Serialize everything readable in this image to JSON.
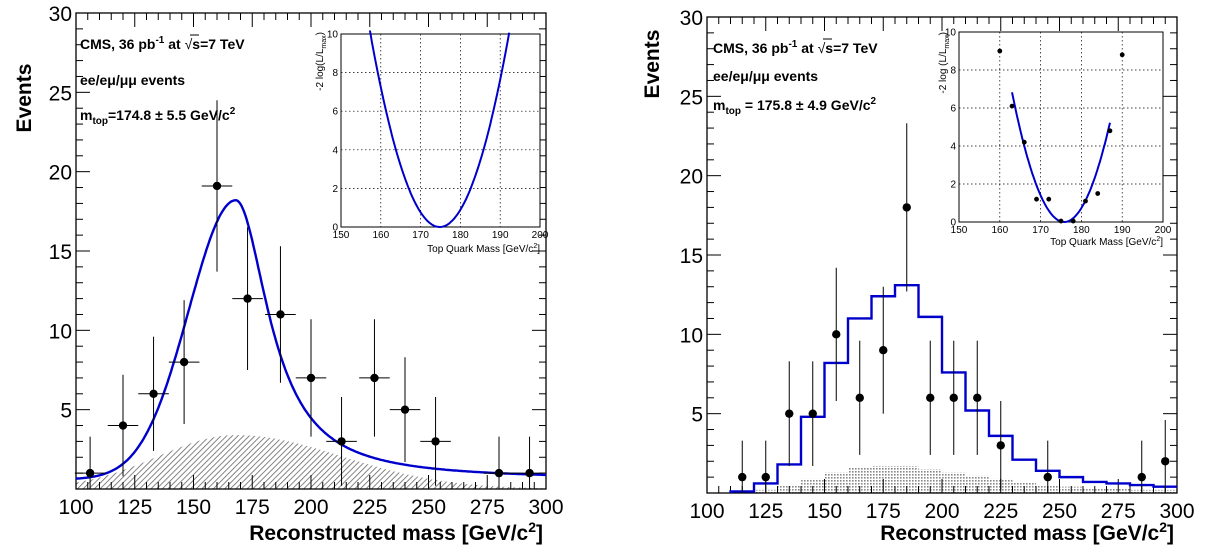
{
  "chart_data": [
    {
      "type": "scatter",
      "panel": "left",
      "xlabel": "Reconstructed mass [GeV/c",
      "xlabel_sup": "2",
      "xlabel_end": "]",
      "ylabel": "Events",
      "xlim": [
        100,
        300
      ],
      "ylim": [
        0,
        30
      ],
      "xticks": [
        100,
        125,
        150,
        175,
        200,
        225,
        250,
        275,
        300
      ],
      "yticks": [
        5,
        10,
        15,
        20,
        25,
        30
      ],
      "annotations": {
        "line1": "CMS, 36 pb",
        "line1_sup": "-1",
        "line1_mid": " at ",
        "line1_sqrt": "√",
        "line1_end": "s=7 TeV",
        "line2": "ee/eμ/μμ events",
        "line3_main": "m",
        "line3_sub": "top",
        "line3_rest": "=174.8 ± 5.5 GeV/c",
        "line3_sup": "2"
      },
      "series": [
        {
          "kind": "points_with_errors",
          "color": "#000000",
          "points": [
            {
              "x": 106,
              "y": 1,
              "err": 2.3,
              "xerr": 6.5
            },
            {
              "x": 120,
              "y": 4,
              "err": 3.2,
              "xerr": 6.5
            },
            {
              "x": 133,
              "y": 6,
              "err": 3.6,
              "xerr": 6.5
            },
            {
              "x": 146,
              "y": 8,
              "err": 3.9,
              "xerr": 6.5
            },
            {
              "x": 160,
              "y": 19.1,
              "err": 5.4,
              "xerr": 6.5
            },
            {
              "x": 173,
              "y": 12,
              "err": 4.5,
              "xerr": 6.5
            },
            {
              "x": 187,
              "y": 11,
              "err": 4.3,
              "xerr": 6.5
            },
            {
              "x": 200,
              "y": 7,
              "err": 3.7,
              "xerr": 6.5
            },
            {
              "x": 213,
              "y": 3,
              "err": 2.8,
              "xerr": 6.5
            },
            {
              "x": 227,
              "y": 7,
              "err": 3.7,
              "xerr": 6.5
            },
            {
              "x": 240,
              "y": 5,
              "err": 3.3,
              "xerr": 6.5
            },
            {
              "x": 253,
              "y": 3,
              "err": 2.8,
              "xerr": 6.5
            },
            {
              "x": 280,
              "y": 1,
              "err": 2.3,
              "xerr": 6.5
            },
            {
              "x": 293,
              "y": 1,
              "err": 2.3,
              "xerr": 6.5
            }
          ]
        },
        {
          "kind": "signal_curve",
          "color": "#0000cc",
          "peak_x": 168,
          "peak_y": 18.2,
          "baseline": 0.6,
          "sigma_left": 20,
          "width_right": 17
        },
        {
          "kind": "background_hatched",
          "color": "#888888",
          "peak_x": 168,
          "peak_y": 3.4,
          "sigma_left": 33,
          "sigma_right": 45
        }
      ],
      "inset": {
        "type": "line",
        "xlabel": "Top Quark Mass [GeV/c",
        "xlabel_sup": "2",
        "xlabel_end": "]",
        "ylabel": "-2 log(L/L",
        "ylabel_sub": "max",
        "ylabel_end": ")",
        "xlim": [
          150,
          200
        ],
        "ylim": [
          0,
          10
        ],
        "xticks": [
          150,
          160,
          170,
          180,
          190,
          200
        ],
        "yticks": [
          0,
          2,
          4,
          6,
          8,
          10
        ],
        "curve": {
          "min_x": 174.8,
          "sigma": 5.5,
          "color": "#0000cc"
        }
      }
    },
    {
      "type": "scatter",
      "panel": "right",
      "xlabel": "Reconstructed mass [GeV/c",
      "xlabel_sup": "2",
      "xlabel_end": "]",
      "ylabel": "Events",
      "xlim": [
        100,
        300
      ],
      "ylim": [
        0,
        30
      ],
      "xticks": [
        100,
        125,
        150,
        175,
        200,
        225,
        250,
        275,
        300
      ],
      "yticks": [
        5,
        10,
        15,
        20,
        25,
        30
      ],
      "annotations": {
        "line1": "CMS, 36 pb",
        "line1_sup": "-1",
        "line1_mid": " at ",
        "line1_sqrt": "√",
        "line1_end": "s=7 TeV",
        "line2": "ee/eμ/μμ events",
        "line3_main": "m",
        "line3_sub": "top",
        "line3_rest": " =  175.8 ± 4.9 GeV/c",
        "line3_sup": "2"
      },
      "series": [
        {
          "kind": "points_with_errors",
          "color": "#000000",
          "points": [
            {
              "x": 115,
              "y": 1,
              "err": 2.3,
              "xerr": 0
            },
            {
              "x": 125,
              "y": 1,
              "err": 2.3,
              "xerr": 0
            },
            {
              "x": 135,
              "y": 5,
              "err": 3.3,
              "xerr": 0
            },
            {
              "x": 145,
              "y": 5,
              "err": 3.3,
              "xerr": 0
            },
            {
              "x": 155,
              "y": 10,
              "err": 4.2,
              "xerr": 0
            },
            {
              "x": 165,
              "y": 6,
              "err": 3.6,
              "xerr": 0
            },
            {
              "x": 175,
              "y": 9,
              "err": 4.0,
              "xerr": 0
            },
            {
              "x": 185,
              "y": 18,
              "err": 5.3,
              "xerr": 0
            },
            {
              "x": 195,
              "y": 6,
              "err": 3.6,
              "xerr": 0
            },
            {
              "x": 205,
              "y": 6,
              "err": 3.6,
              "xerr": 0
            },
            {
              "x": 215,
              "y": 6,
              "err": 3.6,
              "xerr": 0
            },
            {
              "x": 225,
              "y": 3,
              "err": 2.8,
              "xerr": 0
            },
            {
              "x": 245,
              "y": 1,
              "err": 2.3,
              "xerr": 0
            },
            {
              "x": 285,
              "y": 1,
              "err": 2.3,
              "xerr": 0
            },
            {
              "x": 295,
              "y": 2,
              "err": 2.6,
              "xerr": 0
            }
          ]
        },
        {
          "kind": "signal_histogram",
          "color": "#0000cc",
          "edges": [
            110,
            120,
            130,
            140,
            150,
            160,
            170,
            180,
            190,
            200,
            210,
            220,
            230,
            240,
            250,
            260,
            270,
            280,
            290,
            300
          ],
          "values": [
            0.1,
            0.6,
            1.8,
            4.8,
            8.2,
            11.0,
            12.4,
            13.1,
            11.1,
            7.6,
            5.2,
            3.6,
            2.1,
            1.4,
            1.0,
            0.7,
            0.6,
            0.5,
            0.4
          ]
        },
        {
          "kind": "background_histogram",
          "color": "#aaaaaa",
          "edges": [
            110,
            120,
            130,
            140,
            150,
            160,
            170,
            180,
            190,
            200,
            210,
            220,
            230,
            240,
            250,
            260,
            270,
            280,
            290,
            300
          ],
          "values": [
            0.05,
            0.2,
            0.5,
            0.9,
            1.3,
            1.6,
            1.7,
            1.7,
            1.5,
            1.3,
            1.1,
            0.9,
            0.7,
            0.5,
            0.4,
            0.3,
            0.3,
            0.2,
            0.2
          ]
        }
      ],
      "inset": {
        "type": "scatter",
        "xlabel": "Top Quark Mass [GeV/c",
        "xlabel_sup": "2",
        "xlabel_end": "]",
        "ylabel": "-2 log (L/L",
        "ylabel_sub": "max",
        "ylabel_end": ")",
        "xlim": [
          150,
          200
        ],
        "ylim": [
          0,
          10
        ],
        "xticks": [
          150,
          160,
          170,
          180,
          190,
          200
        ],
        "yticks": [
          0,
          2,
          4,
          6,
          8,
          10
        ],
        "points": [
          {
            "x": 160,
            "y": 9.0
          },
          {
            "x": 163,
            "y": 6.1
          },
          {
            "x": 166,
            "y": 4.2
          },
          {
            "x": 169,
            "y": 1.2
          },
          {
            "x": 172,
            "y": 1.2
          },
          {
            "x": 175,
            "y": 0.05
          },
          {
            "x": 178,
            "y": 0.05
          },
          {
            "x": 181,
            "y": 1.1
          },
          {
            "x": 184,
            "y": 1.5
          },
          {
            "x": 187,
            "y": 4.8
          },
          {
            "x": 190,
            "y": 8.8
          }
        ],
        "curve": {
          "min_x": 175.8,
          "sigma": 4.9,
          "from_x": 163,
          "to_x": 187,
          "color": "#0000cc"
        }
      }
    }
  ]
}
